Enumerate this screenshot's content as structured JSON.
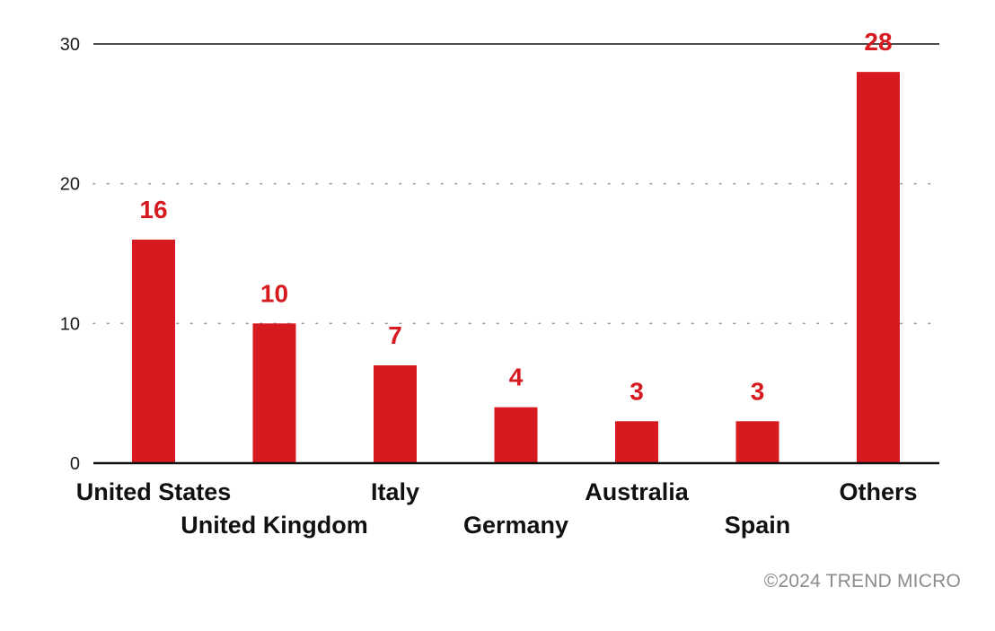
{
  "chart_data": {
    "type": "bar",
    "categories": [
      "United States",
      "United Kingdom",
      "Italy",
      "Germany",
      "Australia",
      "Spain",
      "Others"
    ],
    "values": [
      16,
      10,
      7,
      4,
      3,
      3,
      28
    ],
    "title": "",
    "xlabel": "",
    "ylabel": "",
    "ylim": [
      0,
      30
    ],
    "yticks": [
      0,
      10,
      20,
      30
    ],
    "grid": "dotted horizontal at 10 and 20",
    "legend": "none",
    "bar_color": "#d71920",
    "label_color": "#d71920"
  },
  "footer": {
    "copyright": "©2024 TREND MICRO"
  }
}
